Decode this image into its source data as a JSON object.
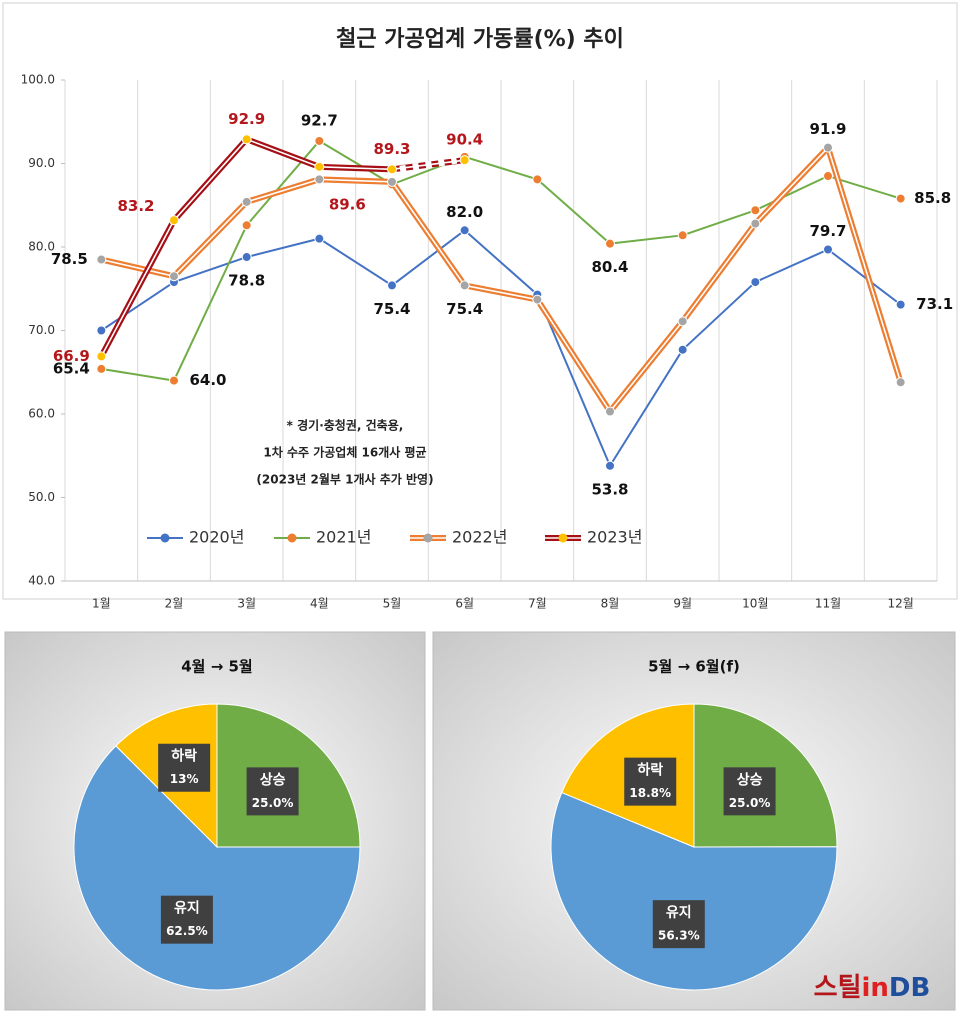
{
  "chart_data": [
    {
      "type": "line",
      "title": "철근 가공업계 가동률(%) 추이",
      "categories": [
        "1월",
        "2월",
        "3월",
        "4월",
        "5월",
        "6월",
        "7월",
        "8월",
        "9월",
        "10월",
        "11월",
        "12월"
      ],
      "series": [
        {
          "name": "2020년",
          "color": "#4472c4",
          "marker_color": "#4472c4",
          "line_style": "single",
          "values": [
            70.0,
            75.8,
            78.8,
            81.0,
            75.4,
            82.0,
            74.3,
            53.8,
            67.7,
            75.8,
            79.7,
            73.1
          ],
          "value_labels": [
            null,
            null,
            "78.8",
            null,
            "75.4",
            "82.0",
            null,
            "53.8",
            null,
            null,
            "79.7",
            "73.1"
          ],
          "label_color": "#111"
        },
        {
          "name": "2021년",
          "color": "#70ad47",
          "marker_color": "#ed7d31",
          "line_style": "single",
          "values": [
            65.4,
            64.0,
            82.6,
            92.7,
            87.5,
            90.8,
            88.1,
            80.4,
            81.4,
            84.4,
            88.5,
            85.8
          ],
          "value_labels": [
            "65.4",
            "64.0",
            null,
            "92.7",
            null,
            null,
            null,
            "80.4",
            null,
            null,
            null,
            "85.8"
          ],
          "label_color": "#111"
        },
        {
          "name": "2022년",
          "color": "#ed7d31",
          "marker_color": "#a5a5a5",
          "line_style": "double",
          "values": [
            78.5,
            76.5,
            85.4,
            88.1,
            87.8,
            75.4,
            73.7,
            60.3,
            71.1,
            82.8,
            91.9,
            63.8
          ],
          "value_labels": [
            "78.5",
            null,
            null,
            null,
            null,
            "75.4",
            null,
            null,
            null,
            null,
            "91.9",
            null
          ],
          "label_color": "#111"
        },
        {
          "name": "2023년",
          "color": "#a50f15",
          "marker_color": "#ffc000",
          "line_style": "double",
          "dashed_from": 4,
          "values": [
            66.9,
            83.2,
            92.9,
            89.6,
            89.3,
            90.4,
            null,
            null,
            null,
            null,
            null,
            null
          ],
          "value_labels": [
            "66.9",
            "83.2",
            "92.9",
            "89.6",
            "89.3",
            "90.4",
            null,
            null,
            null,
            null,
            null,
            null
          ],
          "label_color": "#b3161b"
        }
      ],
      "ylim": [
        40,
        100
      ],
      "yticks": [
        {
          "value": 40,
          "label": "40.0"
        },
        {
          "value": 50,
          "label": "50.0"
        },
        {
          "value": 60,
          "label": "60.0"
        },
        {
          "value": 70,
          "label": "70.0"
        },
        {
          "value": 80,
          "label": "80.0"
        },
        {
          "value": 90,
          "label": "90.0"
        },
        {
          "value": 100,
          "label": "100.0"
        }
      ],
      "grid": "vertical",
      "legend": "bottom",
      "annotation": [
        "* 경기·충청권, 건축용,",
        "1차 수주 가공업체 16개사 평균",
        "(2023년 2월부 1개사 추가 반영)"
      ]
    },
    {
      "type": "pie",
      "title": "4월 → 5월",
      "categories": [
        "상승",
        "유지",
        "하락"
      ],
      "values": [
        25.0,
        62.5,
        12.5
      ],
      "value_labels": [
        "25.0%",
        "62.5%",
        "13%"
      ],
      "colors": [
        "#70ad47",
        "#5b9bd5",
        "#ffc000"
      ]
    },
    {
      "type": "pie",
      "title": "5월 → 6월(f)",
      "categories": [
        "상승",
        "유지",
        "하락"
      ],
      "values": [
        25.0,
        56.3,
        18.8
      ],
      "value_labels": [
        "25.0%",
        "56.3%",
        "18.8%"
      ],
      "colors": [
        "#70ad47",
        "#5b9bd5",
        "#ffc000"
      ]
    }
  ],
  "logo": [
    "스틸",
    "in",
    "DB"
  ]
}
